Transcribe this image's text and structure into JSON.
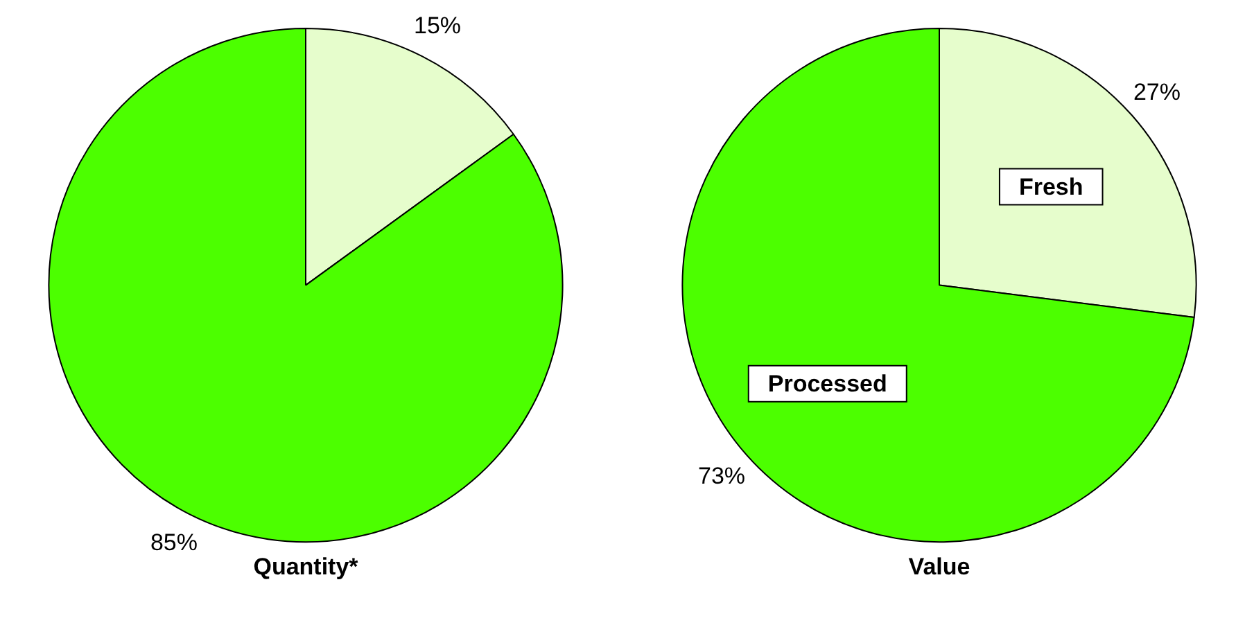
{
  "chart_data": [
    {
      "type": "pie",
      "title": "Quantity*",
      "categories": [
        null,
        null
      ],
      "values": [
        15,
        85
      ],
      "colors": [
        "#e6fdcc",
        "#4cff00"
      ],
      "value_labels": [
        "15%",
        "85%"
      ]
    },
    {
      "type": "pie",
      "title": "Value",
      "categories": [
        "Fresh",
        "Processed"
      ],
      "values": [
        27,
        73
      ],
      "colors": [
        "#e6fdcc",
        "#4cff00"
      ],
      "value_labels": [
        "27%",
        "73%"
      ]
    }
  ]
}
